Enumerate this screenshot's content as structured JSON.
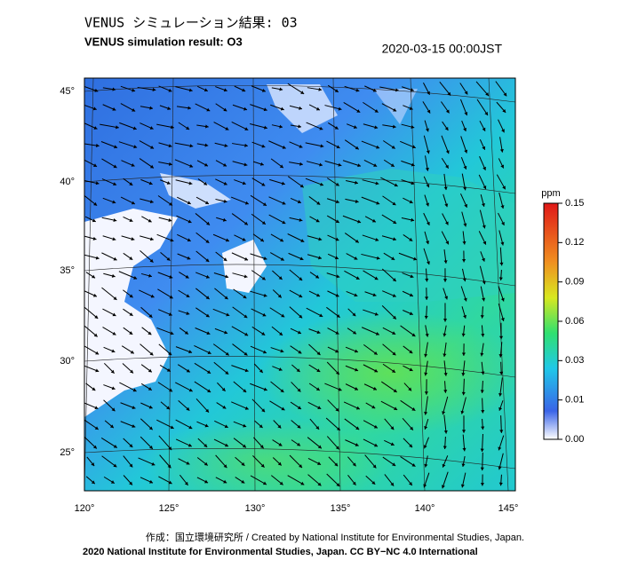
{
  "header": {
    "title": "VENUS シミュレーション結果: 03",
    "subtitle": "VENUS simulation result: O3",
    "timestamp": "2020-03-15 00:00JST"
  },
  "map": {
    "lon_labels": [
      "120°",
      "125°",
      "130°",
      "135°",
      "140°",
      "145°"
    ],
    "lat_labels": [
      "45°",
      "40°",
      "35°",
      "30°",
      "25°"
    ]
  },
  "colorbar": {
    "unit": "ppm",
    "ticks": [
      0.15,
      0.12,
      0.09,
      0.06,
      0.03,
      0.01,
      {
        "value": 0,
        "label": "0.00"
      }
    ]
  },
  "footer": {
    "credit": "作成：国立環境研究所 / Created by National Institute for Environmental Studies, Japan.",
    "license": "2020 National Institute for Environmental Studies, Japan. CC BY−NC 4.0 International"
  }
}
